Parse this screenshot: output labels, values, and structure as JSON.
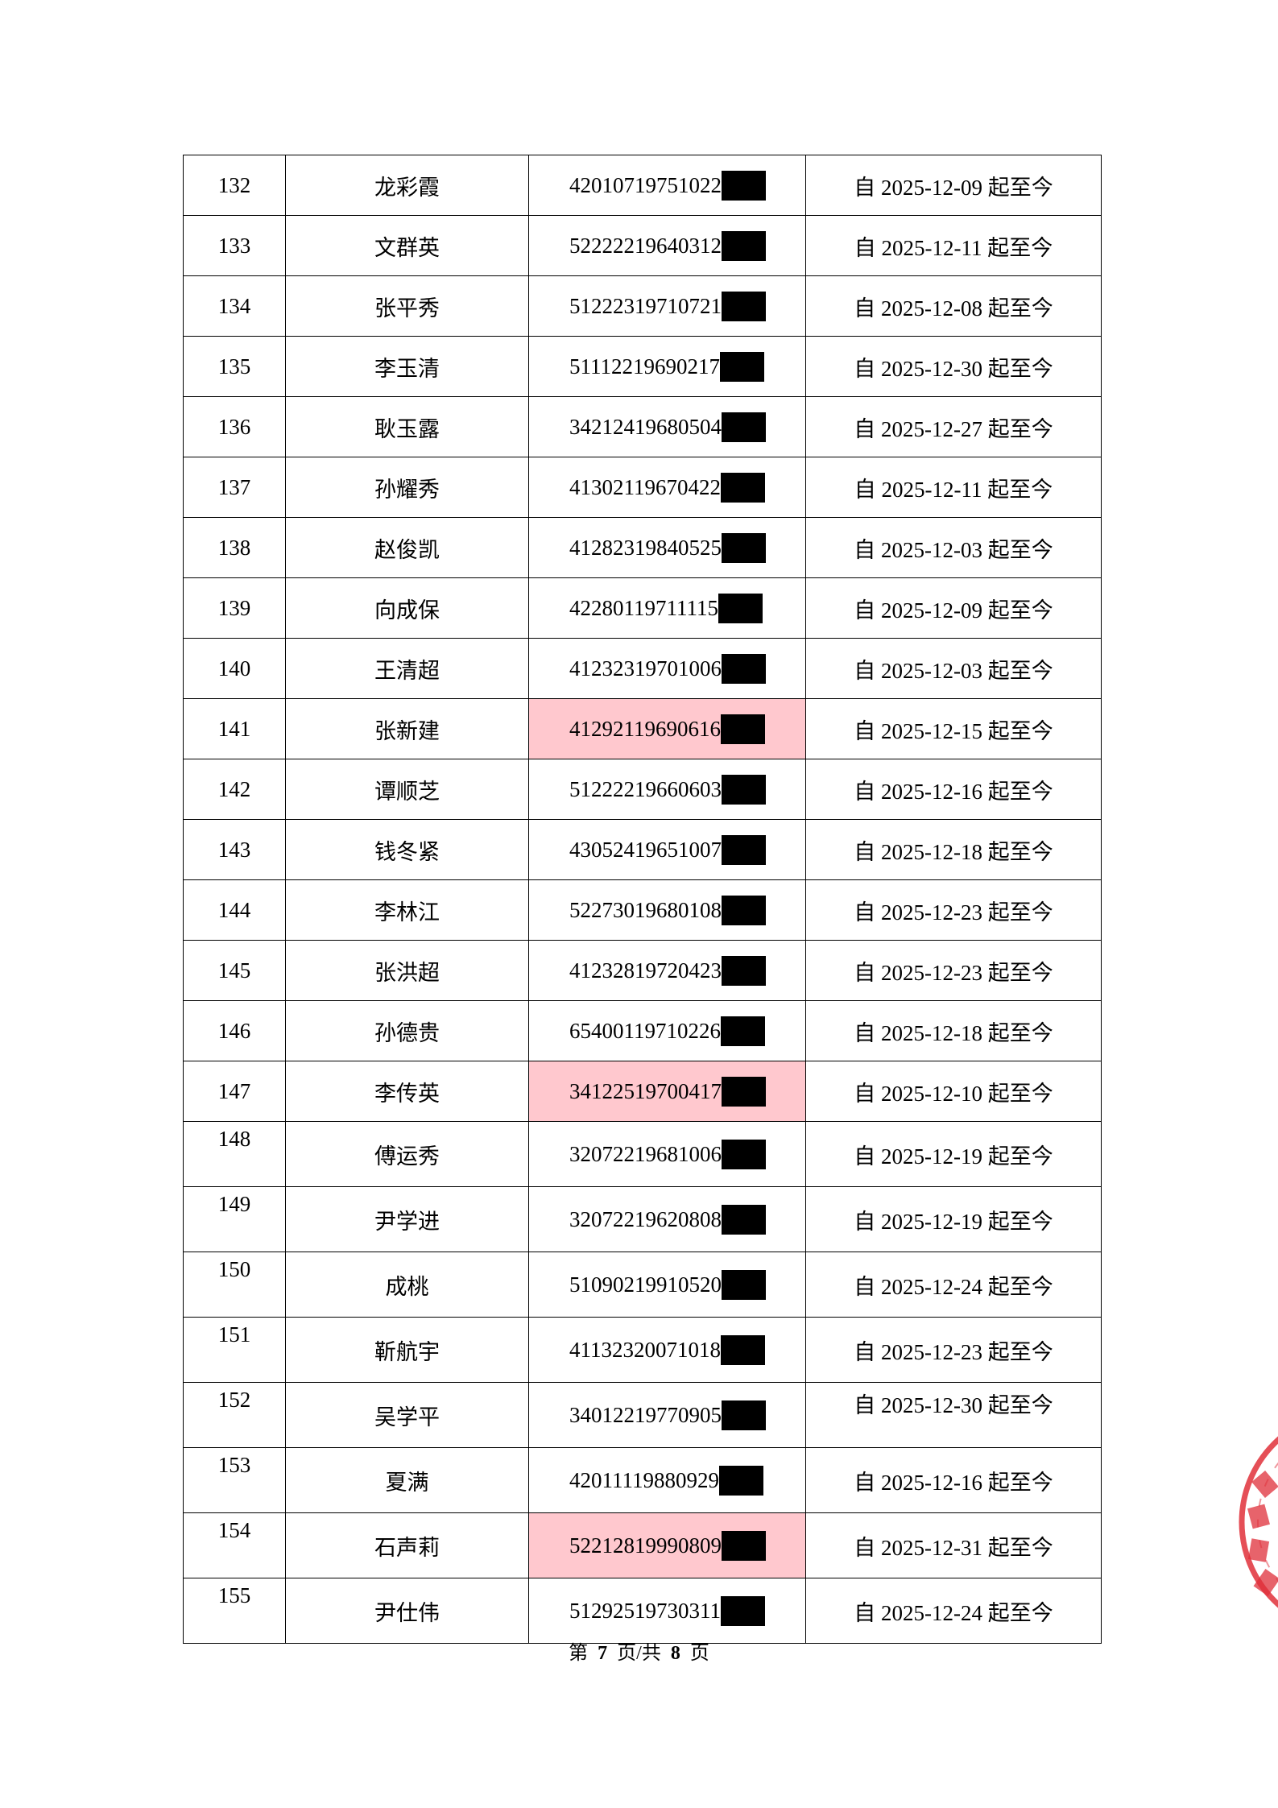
{
  "rows": [
    {
      "no": "132",
      "name": "龙彩霞",
      "id": "42010719751022",
      "date": "自 2025-12-09 起至今",
      "highlight": false
    },
    {
      "no": "133",
      "name": "文群英",
      "id": "52222219640312",
      "date": "自 2025-12-11 起至今",
      "highlight": false
    },
    {
      "no": "134",
      "name": "张平秀",
      "id": "51222319710721",
      "date": "自 2025-12-08 起至今",
      "highlight": false
    },
    {
      "no": "135",
      "name": "李玉清",
      "id": "51112219690217",
      "date": "自 2025-12-30 起至今",
      "highlight": false
    },
    {
      "no": "136",
      "name": "耿玉露",
      "id": "34212419680504",
      "date": "自 2025-12-27 起至今",
      "highlight": false
    },
    {
      "no": "137",
      "name": "孙耀秀",
      "id": "41302119670422",
      "date": "自 2025-12-11 起至今",
      "highlight": false
    },
    {
      "no": "138",
      "name": "赵俊凯",
      "id": "41282319840525",
      "date": "自 2025-12-03 起至今",
      "highlight": false
    },
    {
      "no": "139",
      "name": "向成保",
      "id": "42280119711115",
      "date": "自 2025-12-09 起至今",
      "highlight": false
    },
    {
      "no": "140",
      "name": "王清超",
      "id": "41232319701006",
      "date": "自 2025-12-03 起至今",
      "highlight": false
    },
    {
      "no": "141",
      "name": "张新建",
      "id": "41292119690616",
      "date": "自 2025-12-15 起至今",
      "highlight": true
    },
    {
      "no": "142",
      "name": "谭顺芝",
      "id": "51222219660603",
      "date": "自 2025-12-16 起至今",
      "highlight": false
    },
    {
      "no": "143",
      "name": "钱冬紧",
      "id": "43052419651007",
      "date": "自 2025-12-18 起至今",
      "highlight": false
    },
    {
      "no": "144",
      "name": "李林江",
      "id": "52273019680108",
      "date": "自 2025-12-23 起至今",
      "highlight": false
    },
    {
      "no": "145",
      "name": "张洪超",
      "id": "41232819720423",
      "date": "自 2025-12-23 起至今",
      "highlight": false
    },
    {
      "no": "146",
      "name": "孙德贵",
      "id": "65400119710226",
      "date": "自 2025-12-18 起至今",
      "highlight": false
    },
    {
      "no": "147",
      "name": "李传英",
      "id": "34122519700417",
      "date": "自 2025-12-10 起至今",
      "highlight": true
    },
    {
      "no": "148",
      "name": "傅运秀",
      "id": "32072219681006",
      "date": "自 2025-12-19 起至今",
      "highlight": false,
      "no_top": true
    },
    {
      "no": "149",
      "name": "尹学进",
      "id": "32072219620808",
      "date": "自 2025-12-19 起至今",
      "highlight": false,
      "no_top": true
    },
    {
      "no": "150",
      "name": "成桃",
      "id": "51090219910520",
      "date": "自 2025-12-24 起至今",
      "highlight": false,
      "no_top": true
    },
    {
      "no": "151",
      "name": "靳航宇",
      "id": "41132320071018",
      "date": "自 2025-12-23 起至今",
      "highlight": false,
      "no_top": true
    },
    {
      "no": "152",
      "name": "吴学平",
      "id": "34012219770905",
      "date": "自 2025-12-30 起至今",
      "highlight": false,
      "no_top": true,
      "date_top": true
    },
    {
      "no": "153",
      "name": "夏满",
      "id": "42011119880929",
      "date": "自 2025-12-16 起至今",
      "highlight": false,
      "no_top": true
    },
    {
      "no": "154",
      "name": "石声莉",
      "id": "52212819990809",
      "date": "自 2025-12-31 起至今",
      "highlight": true,
      "no_top": true
    },
    {
      "no": "155",
      "name": "尹仕伟",
      "id": "51292519730311",
      "date": "自 2025-12-24 起至今",
      "highlight": false,
      "no_top": true
    }
  ],
  "footer": {
    "prefix": "第",
    "page": "7",
    "middle": "页/共",
    "total": "8",
    "suffix": "页"
  },
  "colors": {
    "highlight": "#ffc8ce",
    "redaction": "#000000",
    "stamp": "#e0303a"
  },
  "stamp": {
    "type": "official-seal",
    "partial": true
  }
}
